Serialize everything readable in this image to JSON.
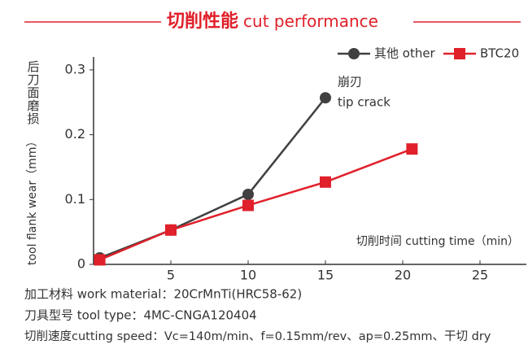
{
  "chart_data": {
    "type": "line",
    "title_cn": "切削性能",
    "title": "cut performance",
    "ylabel_cn": "后刀面磨损",
    "ylabel": "tool flank wear（mm）",
    "xlabel": "切削时间 cutting time（min）",
    "xlim": [
      0,
      28
    ],
    "xticks": [
      5,
      10,
      15,
      20,
      25
    ],
    "ylim": [
      0,
      0.32
    ],
    "yticks": [
      0,
      0.1,
      0.2,
      0.3
    ],
    "series": [
      {
        "name": "其他 other",
        "color": "#404040",
        "marker": "circle",
        "x": [
          0.4,
          5,
          10,
          15
        ],
        "values": [
          0.01,
          0.053,
          0.108,
          0.257
        ]
      },
      {
        "name": "BTC20",
        "color": "#e0202a",
        "marker": "square",
        "x": [
          0.4,
          5,
          10,
          15,
          20.6
        ],
        "values": [
          0.007,
          0.053,
          0.091,
          0.127,
          0.178
        ]
      }
    ],
    "annotation": [
      "崩刃",
      "tip crack"
    ],
    "notes": [
      "加工材料 work material：20CrMnTi(HRC58-62)",
      "刀具型号 tool type：4MC-CNGA120404",
      "切削速度cutting speed：Vc=140m/min、f=0.15mm/rev、ap=0.25mm、干切 dry"
    ]
  }
}
